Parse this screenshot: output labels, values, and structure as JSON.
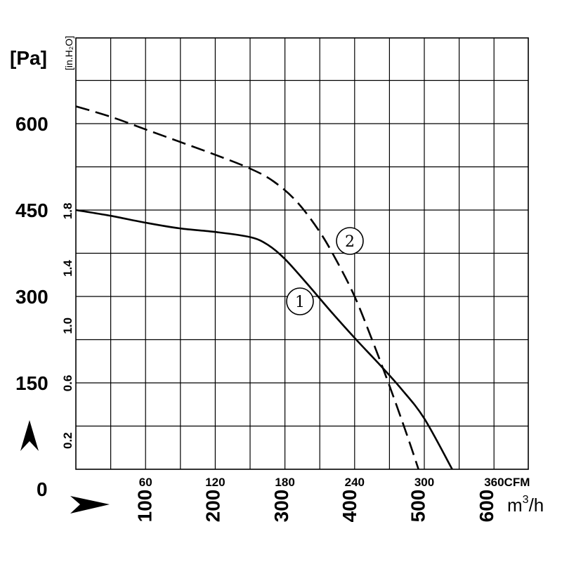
{
  "chart_data": {
    "type": "line",
    "x_primary": {
      "unit": "CFM",
      "ticks": [
        "60",
        "120",
        "180",
        "240",
        "300",
        "360"
      ],
      "last_tick_label": "360CFM",
      "range": [
        0,
        390
      ]
    },
    "x_secondary": {
      "unit": "m³/h",
      "ticks": [
        "100",
        "200",
        "300",
        "400",
        "500",
        "600"
      ],
      "unit_base": "m",
      "unit_sup": "3",
      "unit_tail": "/h"
    },
    "y_primary": {
      "unit": "[Pa]",
      "ticks": [
        "150",
        "300",
        "450",
        "600"
      ],
      "zero_label": "0",
      "range": [
        0,
        733
      ]
    },
    "y_secondary": {
      "unit": "[in.H₂O]",
      "ticks": [
        "0.2",
        "0.6",
        "1.0",
        "1.4",
        "1.8"
      ]
    },
    "grid": true,
    "series": [
      {
        "name": "1",
        "style": "solid",
        "x_cfm": [
          0,
          30,
          60,
          90,
          120,
          150,
          165,
          180,
          200,
          220,
          240,
          260,
          280,
          300,
          324
        ],
        "y_pa": [
          450,
          440,
          428,
          418,
          412,
          403,
          390,
          365,
          320,
          273,
          228,
          185,
          140,
          88,
          0
        ]
      },
      {
        "name": "2",
        "style": "dashed",
        "x_cfm": [
          0,
          30,
          60,
          90,
          120,
          150,
          170,
          190,
          210,
          225,
          240,
          255,
          270,
          285,
          295
        ],
        "y_pa": [
          630,
          612,
          590,
          568,
          546,
          522,
          500,
          465,
          412,
          360,
          300,
          225,
          145,
          60,
          0
        ]
      }
    ],
    "annotations": {
      "marker_1": "1",
      "marker_2": "2"
    }
  },
  "decor": {
    "y_arrow_icon": "up-arrow-icon",
    "x_arrow_icon": "right-arrow-icon"
  }
}
